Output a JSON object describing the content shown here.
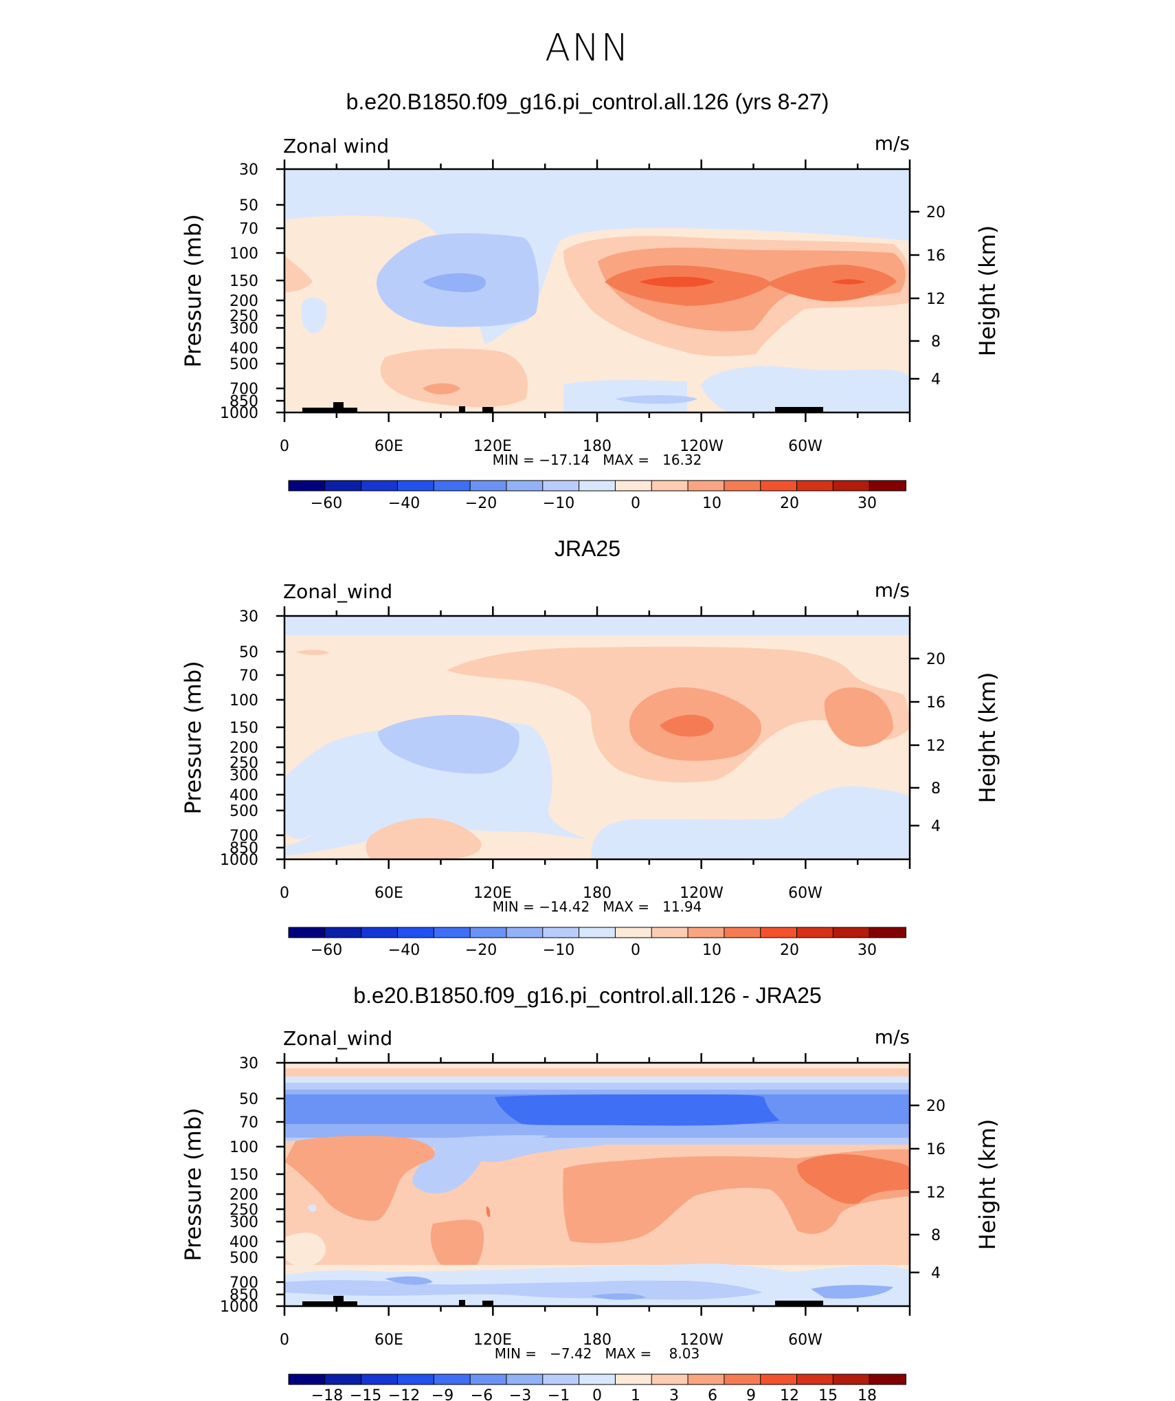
{
  "page_title": "ANN",
  "chart_data": [
    {
      "type": "contour",
      "title": "b.e20.B1850.f09_g16.pi_control.all.126 (yrs 8-27)",
      "left_label": "Zonal wind",
      "unit_label": "m/s",
      "ylabel": "Pressure (mb)",
      "ylabel_right": "Height (km)",
      "x_ticks": [
        "0",
        "60E",
        "120E",
        "180",
        "120W",
        "60W"
      ],
      "y_ticks": [
        "30",
        "50",
        "70",
        "100",
        "150",
        "200",
        "250",
        "300",
        "400",
        "500",
        "700",
        "850",
        "1000"
      ],
      "y_ticks_right": [
        "20",
        "16",
        "12",
        "8",
        "4"
      ],
      "min_max": "MIN = −17.14   MAX =   16.32",
      "colorbar_labels": [
        "−60",
        "−40",
        "−20",
        "−10",
        "0",
        "10",
        "20",
        "30"
      ],
      "colorbar_levels": [
        -70,
        -60,
        -50,
        -40,
        -30,
        -20,
        -15,
        -10,
        -5,
        0,
        5,
        10,
        15,
        20,
        25,
        30
      ],
      "colorbar_colors": [
        "#00007f",
        "#0a1fa8",
        "#1436d4",
        "#2152f0",
        "#3f6ff5",
        "#6b93f5",
        "#92b1f7",
        "#b9cdfb",
        "#d9e7fd",
        "#fde9d7",
        "#fccdb2",
        "#f9a582",
        "#f57c52",
        "#f2532c",
        "#d63217",
        "#b31b0b",
        "#820000"
      ]
    },
    {
      "type": "contour",
      "title": "JRA25",
      "left_label": "Zonal_wind",
      "unit_label": "m/s",
      "ylabel": "Pressure (mb)",
      "ylabel_right": "Height (km)",
      "x_ticks": [
        "0",
        "60E",
        "120E",
        "180",
        "120W",
        "60W"
      ],
      "y_ticks": [
        "30",
        "50",
        "70",
        "100",
        "150",
        "200",
        "250",
        "300",
        "400",
        "500",
        "700",
        "850",
        "1000"
      ],
      "y_ticks_right": [
        "20",
        "16",
        "12",
        "8",
        "4"
      ],
      "min_max": "MIN = −14.42   MAX =   11.94",
      "colorbar_labels": [
        "−60",
        "−40",
        "−20",
        "−10",
        "0",
        "10",
        "20",
        "30"
      ],
      "colorbar_levels": [
        -70,
        -60,
        -50,
        -40,
        -30,
        -20,
        -15,
        -10,
        -5,
        0,
        5,
        10,
        15,
        20,
        25,
        30
      ],
      "colorbar_colors": [
        "#00007f",
        "#0a1fa8",
        "#1436d4",
        "#2152f0",
        "#3f6ff5",
        "#6b93f5",
        "#92b1f7",
        "#b9cdfb",
        "#d9e7fd",
        "#fde9d7",
        "#fccdb2",
        "#f9a582",
        "#f57c52",
        "#f2532c",
        "#d63217",
        "#b31b0b",
        "#820000"
      ]
    },
    {
      "type": "contour",
      "title": "b.e20.B1850.f09_g16.pi_control.all.126 - JRA25",
      "left_label": "Zonal_wind",
      "unit_label": "m/s",
      "ylabel": "Pressure (mb)",
      "ylabel_right": "Height (km)",
      "x_ticks": [
        "0",
        "60E",
        "120E",
        "180",
        "120W",
        "60W"
      ],
      "y_ticks": [
        "30",
        "50",
        "70",
        "100",
        "150",
        "200",
        "250",
        "300",
        "400",
        "500",
        "700",
        "850",
        "1000"
      ],
      "y_ticks_right": [
        "20",
        "16",
        "12",
        "8",
        "4"
      ],
      "min_max": "MIN =   −7.42   MAX =    8.03",
      "colorbar_labels": [
        "−18",
        "−15",
        "−12",
        "−9",
        "−6",
        "−3",
        "−1",
        "0",
        "1",
        "3",
        "6",
        "9",
        "12",
        "15",
        "18"
      ],
      "colorbar_levels": [
        -18,
        -15,
        -12,
        -9,
        -6,
        -3,
        -1,
        0,
        1,
        3,
        6,
        9,
        12,
        15,
        18
      ],
      "colorbar_colors": [
        "#00007f",
        "#0a1fa8",
        "#1436d4",
        "#2152f0",
        "#3f6ff5",
        "#6b93f5",
        "#92b1f7",
        "#b9cdfb",
        "#d9e7fd",
        "#fde9d7",
        "#fccdb2",
        "#f9a582",
        "#f57c52",
        "#f2532c",
        "#d63217",
        "#b31b0b",
        "#820000"
      ]
    }
  ]
}
